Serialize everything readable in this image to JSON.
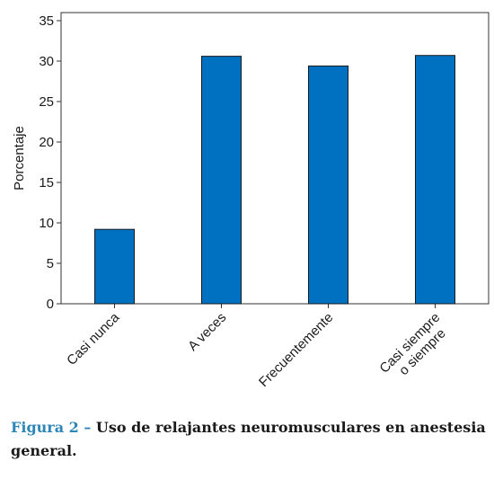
{
  "chart_data": {
    "type": "bar",
    "categories": [
      "Casi nunca",
      "A veces",
      "Frecuentemente",
      "Casi siempre\no siempre"
    ],
    "values": [
      9.2,
      30.6,
      29.4,
      30.7
    ],
    "xlabel": "",
    "ylabel": "Porcentaje",
    "ylim": [
      0,
      35
    ],
    "yticks": [
      0,
      5,
      10,
      15,
      20,
      25,
      30,
      35
    ],
    "grid": false,
    "bar_color": "#0070c0"
  },
  "caption": {
    "label": "Figura 2 –",
    "text": "Uso de relajantes neuromusculares en anestesia general."
  }
}
